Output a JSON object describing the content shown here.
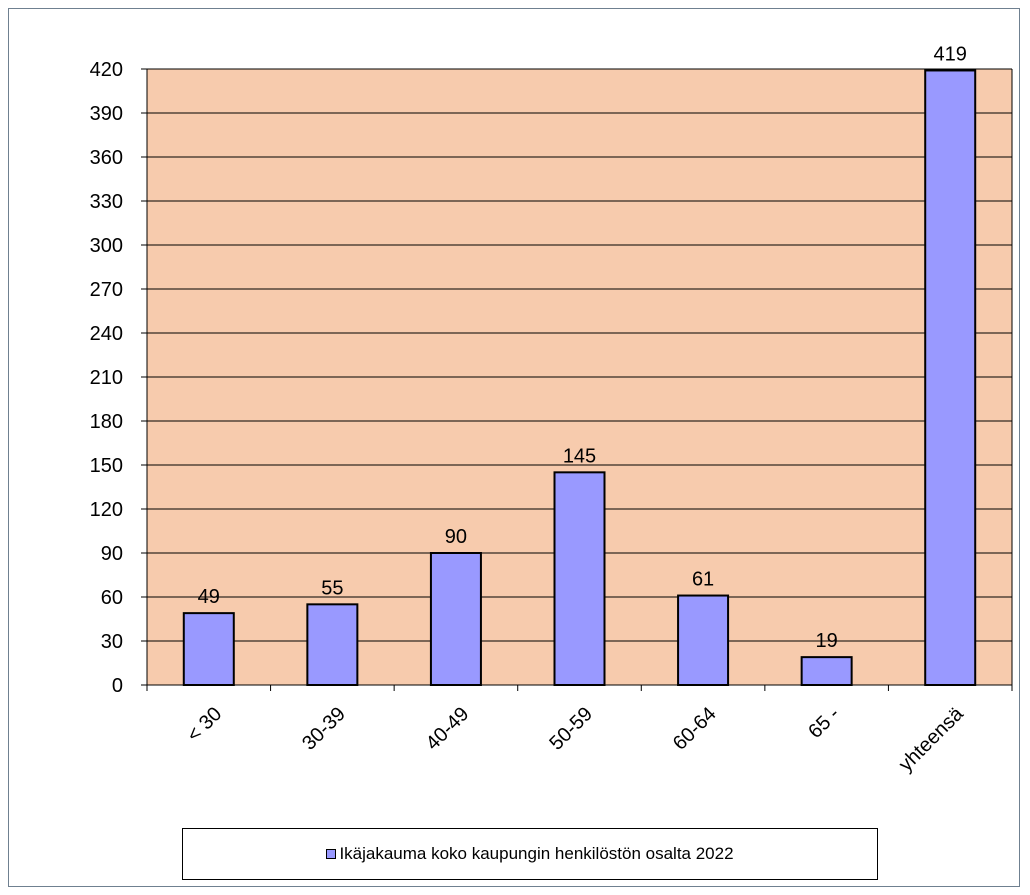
{
  "chart_data": {
    "type": "bar",
    "categories": [
      "< 30",
      "30-39",
      "40-49",
      "50-59",
      "60-64",
      "65 -",
      "yhteensä"
    ],
    "series": [
      {
        "name": "Ikäjakauma koko kaupungin henkilöstön osalta 2022",
        "values": [
          49,
          55,
          90,
          145,
          61,
          19,
          419
        ]
      }
    ],
    "y_ticks": [
      "0",
      "30",
      "60",
      "90",
      "120",
      "150",
      "180",
      "210",
      "240",
      "270",
      "300",
      "330",
      "360",
      "390",
      "420"
    ],
    "ylim": [
      0,
      420
    ],
    "grid": true,
    "data_labels": true,
    "legend": "bottom",
    "colors": {
      "plot_background": "#F7CBAD",
      "bar_fill": "#9999FF",
      "bar_stroke": "#000000",
      "gridline": "#000000"
    }
  },
  "legend": {
    "label": "Ikäjakauma koko kaupungin henkilöstön osalta 2022"
  }
}
